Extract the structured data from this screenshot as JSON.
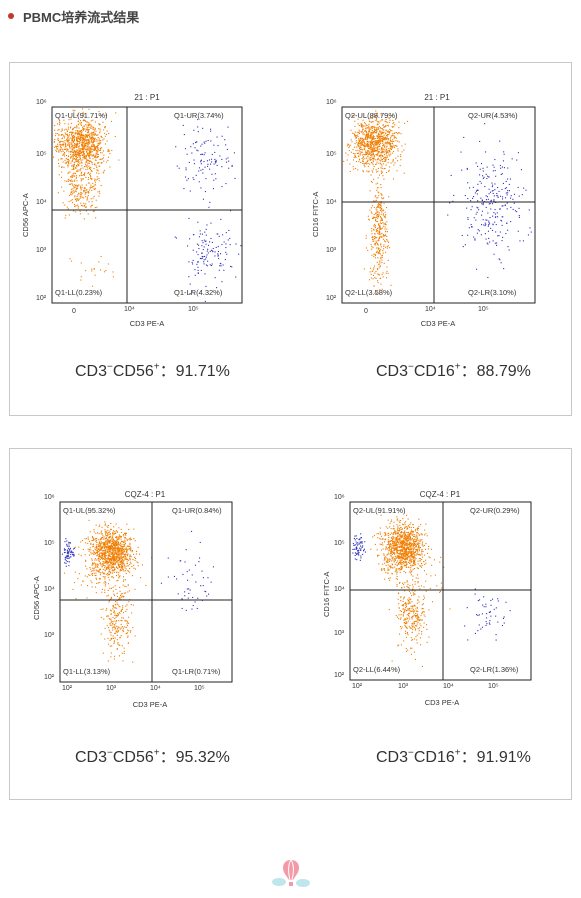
{
  "header": {
    "title": "PBMC培养流式结果"
  },
  "plots": [
    {
      "title": "21 : P1",
      "xlabel": "CD3 PE-A",
      "ylabel": "CD56 APC-A",
      "xticks": [
        "0",
        "10⁴",
        "10⁵"
      ],
      "yticks": [
        "10⁶",
        "10⁵",
        "10⁴",
        "10³",
        "10²"
      ],
      "quadrants": {
        "ul": "Q1-UL(91.71%)",
        "ur": "Q1-UR(3.74%)",
        "ll": "Q1-LL(0.23%)",
        "lr": "Q1-LR(4.32%)"
      },
      "caption_a": "CD3",
      "caption_b": "CD56",
      "sup_a": "−",
      "sup_b": "+",
      "caption_value": "：91.71%"
    },
    {
      "title": "21 : P1",
      "xlabel": "CD3 PE-A",
      "ylabel": "CD16 FITC-A",
      "xticks": [
        "0",
        "10⁴",
        "10⁵"
      ],
      "yticks": [
        "10⁶",
        "10⁵",
        "10⁴",
        "10³",
        "10²"
      ],
      "quadrants": {
        "ul": "Q2-UL(88.79%)",
        "ur": "Q2-UR(4.53%)",
        "ll": "Q2-LL(3.58%)",
        "lr": "Q2-LR(3.10%)"
      },
      "caption_a": "CD3",
      "caption_b": "CD16",
      "sup_a": "−",
      "sup_b": "+",
      "caption_value": "：88.79%"
    },
    {
      "title": "CQZ-4 : P1",
      "xlabel": "CD3 PE-A",
      "ylabel": "CD56 APC-A",
      "xticks": [
        "10²",
        "10³",
        "10⁴",
        "10⁵"
      ],
      "yticks": [
        "10⁶",
        "10⁵",
        "10⁴",
        "10³",
        "10²"
      ],
      "quadrants": {
        "ul": "Q1-UL(95.32%)",
        "ur": "Q1-UR(0.84%)",
        "ll": "Q1-LL(3.13%)",
        "lr": "Q1-LR(0.71%)"
      },
      "caption_a": "CD3",
      "caption_b": "CD56",
      "sup_a": "−",
      "sup_b": "+",
      "caption_value": "：95.32%"
    },
    {
      "title": "CQZ-4 : P1",
      "xlabel": "CD3 PE-A",
      "ylabel": "CD16 FITC-A",
      "xticks": [
        "10²",
        "10³",
        "10⁴",
        "10⁵"
      ],
      "yticks": [
        "10⁶",
        "10⁵",
        "10⁴",
        "10³",
        "10²"
      ],
      "quadrants": {
        "ul": "Q2-UL(91.91%)",
        "ur": "Q2-UR(0.29%)",
        "ll": "Q2-LL(6.44%)",
        "lr": "Q2-LR(1.36%)"
      },
      "caption_a": "CD3",
      "caption_b": "CD16",
      "sup_a": "−",
      "sup_b": "+",
      "caption_value": "：91.91%"
    }
  ],
  "colors": {
    "orange": "#f07d00",
    "blue": "#3030c0",
    "bullet": "#c0392b"
  },
  "footer": {
    "icon": "hot-air-balloon-icon"
  }
}
